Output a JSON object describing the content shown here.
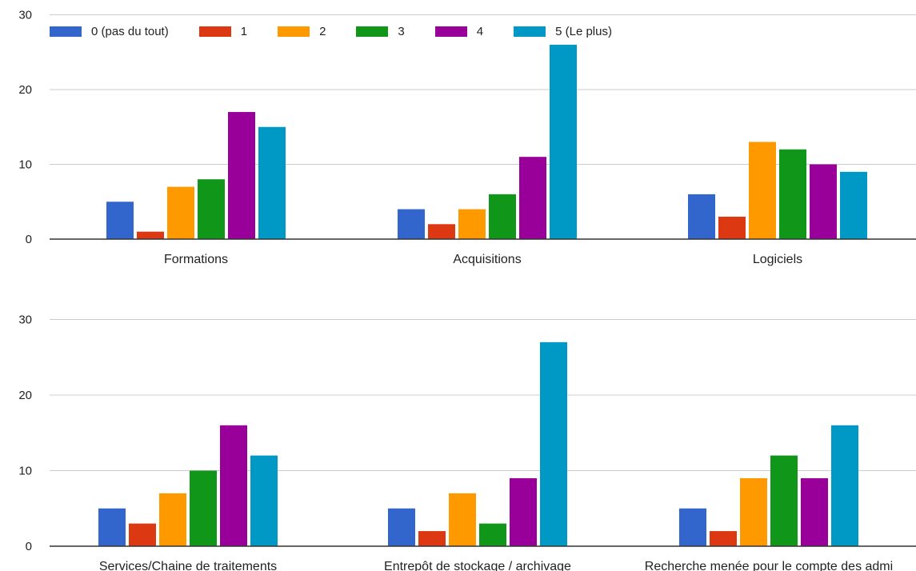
{
  "chart_data": {
    "type": "bar",
    "ylim": [
      0,
      30
    ],
    "yticks": [
      0,
      10,
      20,
      30
    ],
    "grid": true,
    "legend_position": "top-left",
    "series": [
      {
        "name": "0 (pas du tout)",
        "color": "#3366cc"
      },
      {
        "name": "1",
        "color": "#dc3912"
      },
      {
        "name": "2",
        "color": "#ff9900"
      },
      {
        "name": "3",
        "color": "#109618"
      },
      {
        "name": "4",
        "color": "#990099"
      },
      {
        "name": "5 (Le plus)",
        "color": "#0099c6"
      }
    ],
    "panels": [
      {
        "categories": [
          "Formations",
          "Acquisitions",
          "Logiciels"
        ],
        "values": [
          [
            5,
            1,
            7,
            8,
            17,
            15
          ],
          [
            4,
            2,
            4,
            6,
            11,
            26
          ],
          [
            6,
            3,
            13,
            12,
            10,
            9
          ]
        ]
      },
      {
        "categories": [
          "Services/Chaine de traitements",
          "Entrepôt de stockage / archivage",
          "Recherche menée pour le compte des admi"
        ],
        "values": [
          [
            5,
            3,
            7,
            10,
            16,
            12
          ],
          [
            5,
            2,
            7,
            3,
            9,
            27
          ],
          [
            5,
            2,
            9,
            12,
            9,
            16
          ]
        ]
      }
    ]
  }
}
